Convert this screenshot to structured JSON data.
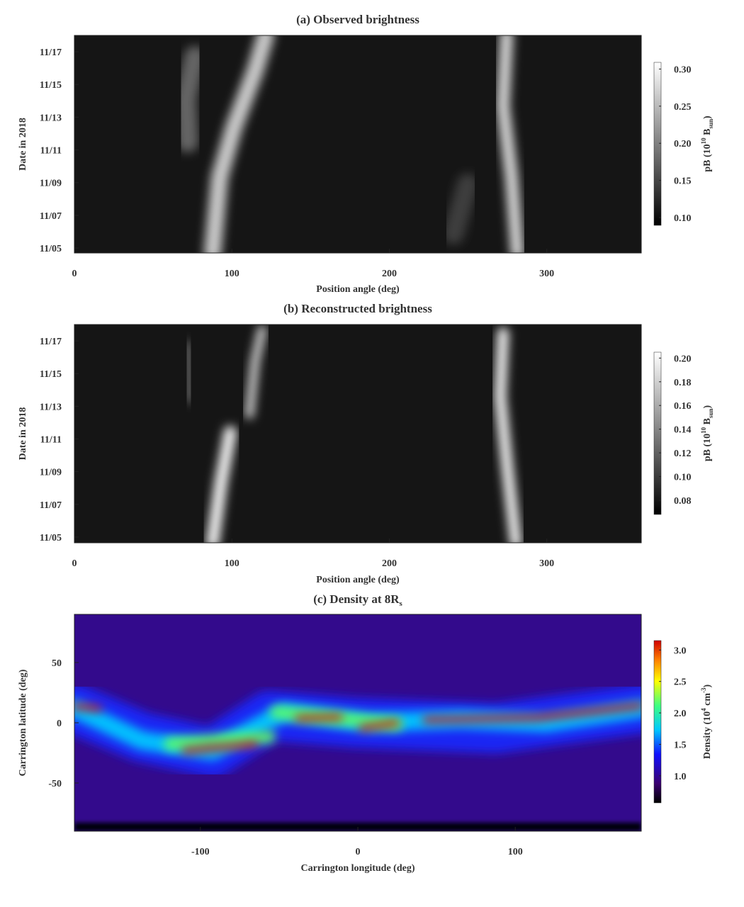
{
  "chart_data": [
    {
      "type": "heatmap",
      "title": "(a) Observed brightness",
      "xlabel": "Position angle (deg)",
      "ylabel": "Date in 2018",
      "xlim": [
        0,
        360
      ],
      "xticks": [
        0,
        100,
        200,
        300
      ],
      "ylim": [
        4.7,
        18.0
      ],
      "yticks": [
        {
          "value": 5,
          "label": "11/05"
        },
        {
          "value": 7,
          "label": "11/07"
        },
        {
          "value": 9,
          "label": "11/09"
        },
        {
          "value": 11,
          "label": "11/11"
        },
        {
          "value": 13,
          "label": "11/13"
        },
        {
          "value": 15,
          "label": "11/15"
        },
        {
          "value": 17,
          "label": "11/17"
        }
      ],
      "colormap": "gray",
      "clim": [
        0.0895,
        0.309
      ],
      "cticks": [
        {
          "value": 0.1,
          "label": "0.10"
        },
        0.15,
        {
          "value": 0.2,
          "label": "0.20"
        },
        0.25,
        {
          "value": 0.3,
          "label": "0.30"
        }
      ],
      "colorbar_label": [
        "pB (10",
        "10",
        " B",
        "sun",
        ")"
      ],
      "colorbar_label_style": [
        "normal",
        "super",
        "normal",
        "sub",
        "normal"
      ]
    },
    {
      "type": "heatmap",
      "title": "(b) Reconstructed brightness",
      "xlabel": "Position angle (deg)",
      "ylabel": "Date in 2018",
      "xlim": [
        0,
        360
      ],
      "xticks": [
        0,
        100,
        200,
        300
      ],
      "ylim": [
        4.65,
        18.0
      ],
      "yticks": [
        {
          "value": 5,
          "label": "11/05"
        },
        {
          "value": 7,
          "label": "11/07"
        },
        {
          "value": 9,
          "label": "11/09"
        },
        {
          "value": 11,
          "label": "11/11"
        },
        {
          "value": 13,
          "label": "11/13"
        },
        {
          "value": 15,
          "label": "11/15"
        },
        {
          "value": 17,
          "label": "11/17"
        }
      ],
      "colormap": "gray",
      "clim": [
        0.068,
        0.205
      ],
      "cticks": [
        0.08,
        {
          "value": 0.1,
          "label": "0.10"
        },
        0.12,
        0.14,
        0.16,
        0.18,
        {
          "value": 0.2,
          "label": "0.20"
        }
      ],
      "colorbar_label": [
        "pB (10",
        "10",
        " B",
        "sun",
        ")"
      ],
      "colorbar_label_style": [
        "normal",
        "super",
        "normal",
        "sub",
        "normal"
      ]
    },
    {
      "type": "heatmap",
      "title": "(c) Density at 8R",
      "title_sub": "s",
      "xlabel": "Carrington longitude (deg)",
      "ylabel": "Carrington latitude (deg)",
      "xlim": [
        -180,
        180
      ],
      "xticks": [
        -100,
        0,
        100
      ],
      "ylim": [
        -90,
        90
      ],
      "yticks": [
        -50,
        0,
        50
      ],
      "colormap": "jet",
      "clim": [
        0.57,
        3.15
      ],
      "cticks": [
        {
          "value": 1.0,
          "label": "1.0"
        },
        1.5,
        {
          "value": 2.0,
          "label": "2.0"
        },
        2.5,
        {
          "value": 3.0,
          "label": "3.0"
        }
      ],
      "colorbar_label": [
        "Density (10",
        "4",
        " cm",
        "-3",
        ")"
      ],
      "colorbar_label_style": [
        "normal",
        "super",
        "normal",
        "super",
        "normal"
      ]
    }
  ]
}
